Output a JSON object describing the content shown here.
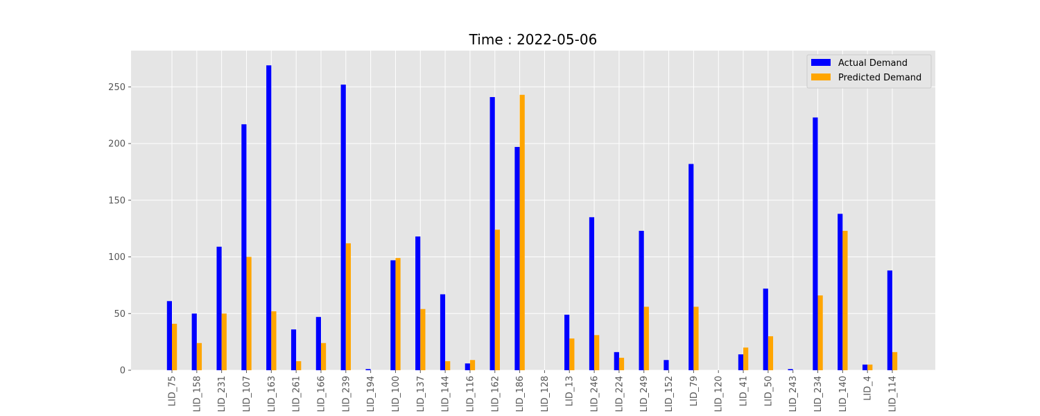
{
  "chart_data": {
    "type": "bar",
    "title": "Time : 2022-05-06",
    "xlabel": "",
    "ylabel": "",
    "ylim": [
      0,
      282
    ],
    "yticks": [
      0,
      50,
      100,
      150,
      200,
      250
    ],
    "grid": true,
    "legend_position": "top-right",
    "categories": [
      "LID_75",
      "LID_158",
      "LID_231",
      "LID_107",
      "LID_163",
      "LID_261",
      "LID_166",
      "LID_239",
      "LID_194",
      "LID_100",
      "LID_137",
      "LID_144",
      "LID_116",
      "LID_162",
      "LID_186",
      "LID_128",
      "LID_13",
      "LID_246",
      "LID_224",
      "LID_249",
      "LID_152",
      "LID_79",
      "LID_120",
      "LID_41",
      "LID_50",
      "LID_243",
      "LID_234",
      "LID_140",
      "LID_4",
      "LID_114"
    ],
    "series": [
      {
        "name": "Actual Demand",
        "color": "#0000ff",
        "values": [
          61,
          50,
          109,
          217,
          269,
          36,
          47,
          252,
          1,
          97,
          118,
          67,
          6,
          241,
          197,
          0,
          49,
          135,
          16,
          123,
          9,
          182,
          0,
          14,
          72,
          1,
          223,
          138,
          5,
          88
        ]
      },
      {
        "name": "Predicted Demand",
        "color": "#ffa500",
        "values": [
          41,
          24,
          50,
          100,
          52,
          8,
          24,
          112,
          0,
          99,
          54,
          8,
          9,
          124,
          243,
          0,
          28,
          31,
          11,
          56,
          0,
          56,
          0,
          20,
          30,
          0,
          66,
          123,
          5,
          16
        ]
      }
    ],
    "colors": {
      "plot_background": "#e5e5e5",
      "grid": "#ffffff"
    }
  }
}
